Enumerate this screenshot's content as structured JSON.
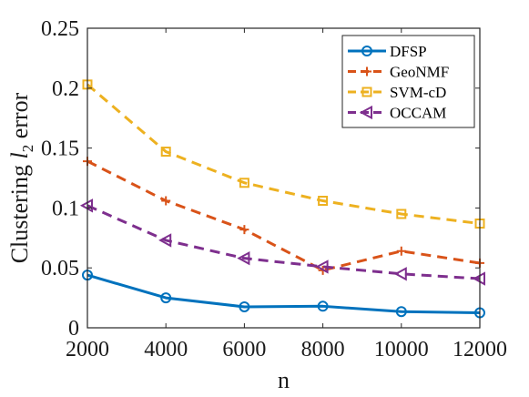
{
  "chart_data": {
    "type": "line",
    "title": "",
    "xlabel": "n",
    "ylabel": {
      "prefix": "Clustering ",
      "var": "l",
      "sub": "2",
      "suffix": " error"
    },
    "xlim": [
      2000,
      12000
    ],
    "ylim": [
      0,
      0.25
    ],
    "x_ticks": [
      2000,
      4000,
      6000,
      8000,
      10000,
      12000
    ],
    "x_tick_labels": [
      "2000",
      "4000",
      "6000",
      "8000",
      "10000",
      "12000"
    ],
    "y_ticks": [
      0,
      0.05,
      0.1,
      0.15,
      0.2,
      0.25
    ],
    "y_tick_labels": [
      "0",
      "0.05",
      "0.1",
      "0.15",
      "0.2",
      "0.25"
    ],
    "grid": false,
    "legend_position": "top-right",
    "x": [
      2000,
      4000,
      6000,
      8000,
      10000,
      12000
    ],
    "series": [
      {
        "name": "DFSP",
        "color": "#0072bd",
        "line_style": "solid",
        "marker": "circle",
        "values": [
          0.044,
          0.025,
          0.0175,
          0.018,
          0.0135,
          0.0125
        ]
      },
      {
        "name": "GeoNMF",
        "color": "#d95319",
        "line_style": "dashed",
        "marker": "plus",
        "values": [
          0.139,
          0.106,
          0.082,
          0.048,
          0.064,
          0.054
        ]
      },
      {
        "name": "SVM-cD",
        "color": "#edb120",
        "line_style": "dashed",
        "marker": "square",
        "values": [
          0.203,
          0.147,
          0.121,
          0.106,
          0.095,
          0.087
        ]
      },
      {
        "name": "OCCAM",
        "color": "#7e2f8e",
        "line_style": "dashed",
        "marker": "triangle-left",
        "values": [
          0.102,
          0.073,
          0.058,
          0.051,
          0.045,
          0.041
        ]
      }
    ]
  }
}
